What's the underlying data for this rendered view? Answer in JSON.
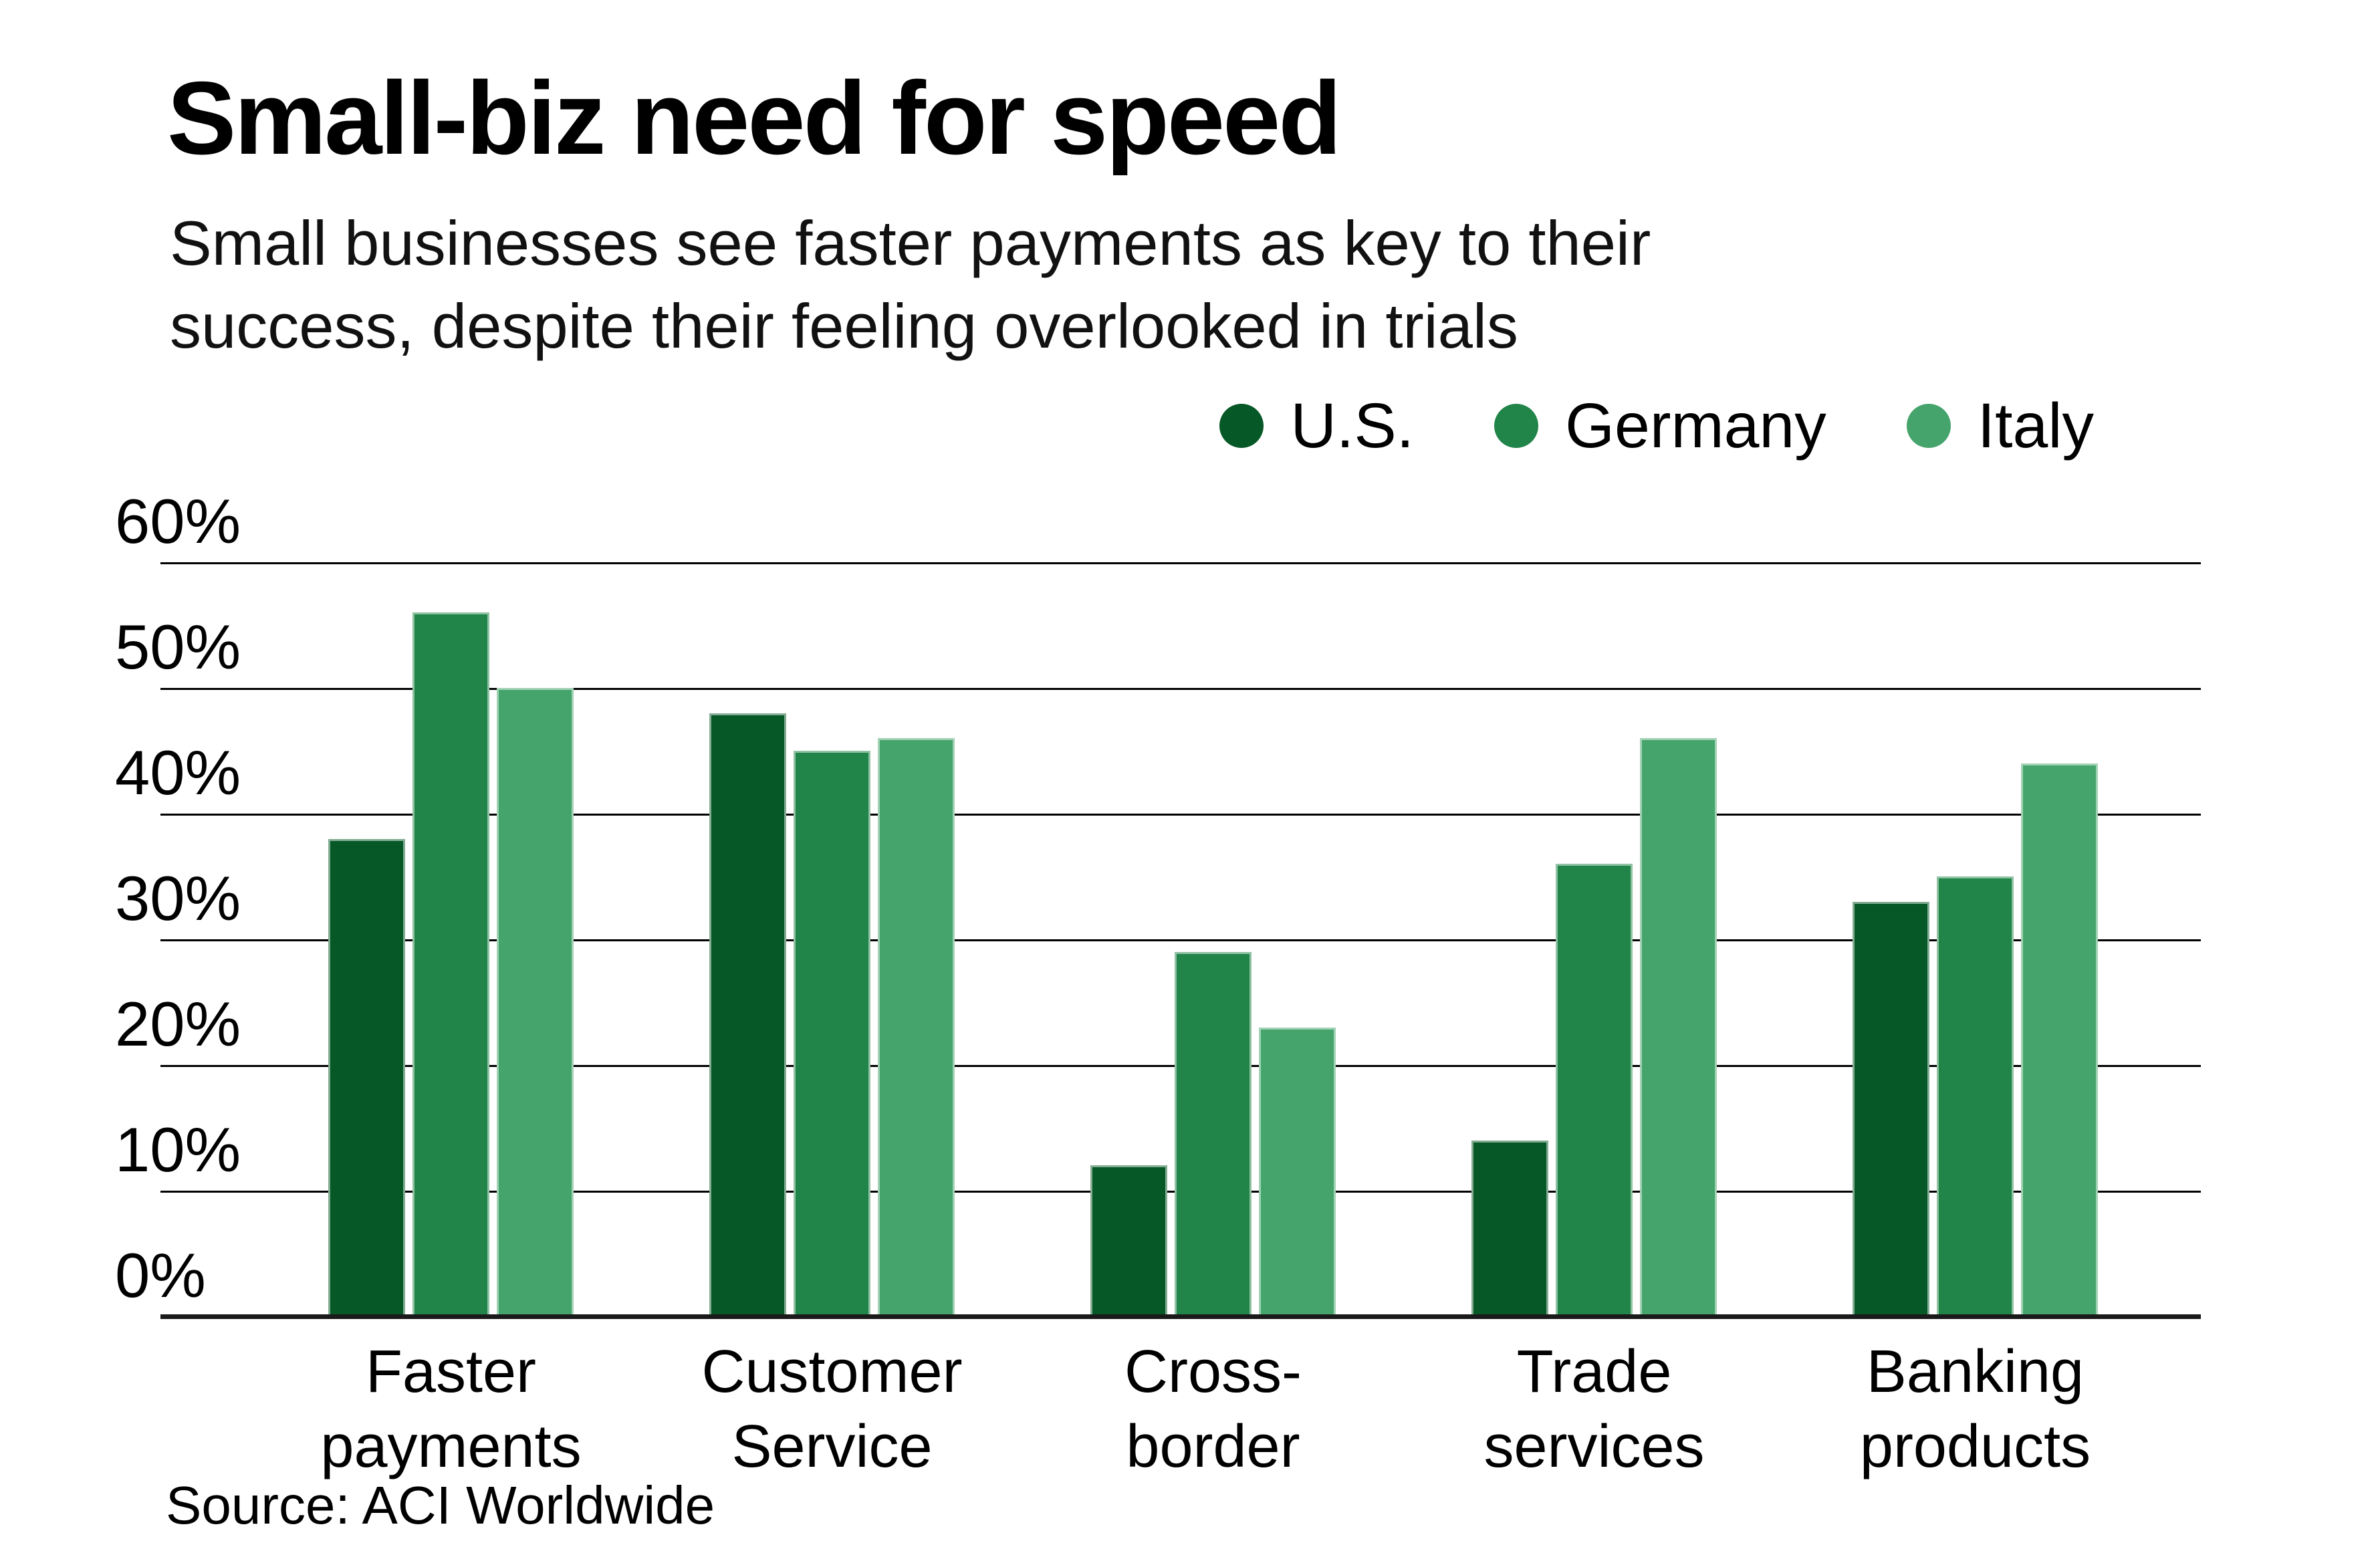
{
  "header": {
    "title": "Small-biz need for speed",
    "subtitle_line1": "Small businesses see faster payments as key to their",
    "subtitle_line2": "success, despite their feeling overlooked in trials"
  },
  "legend": {
    "items": [
      {
        "label": "U.S.",
        "color": "#075827"
      },
      {
        "label": "Germany",
        "color": "#218449"
      },
      {
        "label": "Italy",
        "color": "#45a46b"
      }
    ]
  },
  "source": "Source: ACI Worldwide",
  "chart_data": {
    "type": "bar",
    "title": "Small-biz need for speed",
    "subtitle": "Small businesses see faster payments as key to their success, despite their feeling overlooked in trials",
    "categories": [
      "Faster payments",
      "Customer Service",
      "Cross-border",
      "Trade services",
      "Banking products"
    ],
    "category_label_lines": [
      [
        "Faster",
        "payments"
      ],
      [
        "Customer",
        "Service"
      ],
      [
        "Cross-",
        "border"
      ],
      [
        "Trade",
        "services"
      ],
      [
        "Banking",
        "products"
      ]
    ],
    "series": [
      {
        "name": "U.S.",
        "color": "#075827",
        "values": [
          38,
          48,
          12,
          14,
          33
        ]
      },
      {
        "name": "Germany",
        "color": "#218449",
        "values": [
          56,
          45,
          29,
          36,
          35
        ]
      },
      {
        "name": "Italy",
        "color": "#45a46b",
        "values": [
          50,
          46,
          23,
          46,
          44
        ]
      }
    ],
    "ylabel": "",
    "xlabel": "",
    "ylim": [
      0,
      60
    ],
    "ytick_values": [
      60,
      50,
      40,
      30,
      20,
      10,
      0
    ],
    "ytick_labels": [
      "60%",
      "50%",
      "40%",
      "30%",
      "20%",
      "10%",
      "0%"
    ],
    "grid": true,
    "legend_position": "top-right",
    "source": "Source: ACI Worldwide"
  }
}
